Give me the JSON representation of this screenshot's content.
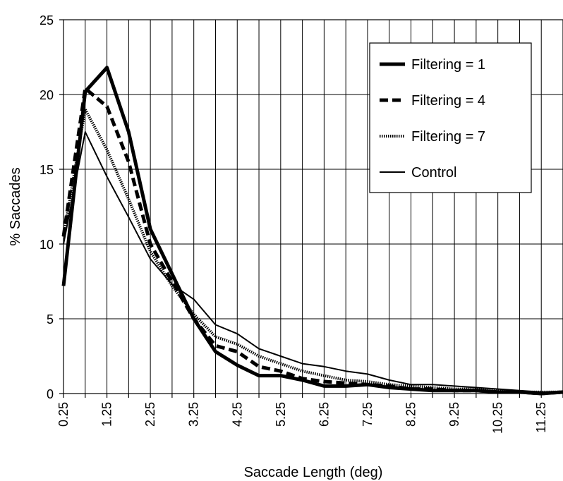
{
  "chart_data": {
    "type": "line",
    "xlabel": "Saccade Length (deg)",
    "ylabel": "% Saccades",
    "xlim": [
      0.25,
      11.75
    ],
    "ylim": [
      0,
      25
    ],
    "x_tick_labels": [
      "0.25",
      "1.25",
      "2.25",
      "3.25",
      "4.25",
      "5.25",
      "6.25",
      "7.25",
      "8.25",
      "9.25",
      "10.25",
      "11.25"
    ],
    "y_tick_labels": [
      "0",
      "5",
      "10",
      "15",
      "20",
      "25"
    ],
    "grid": true,
    "legend_position": "top-right",
    "x": [
      0.25,
      0.75,
      1.25,
      1.75,
      2.25,
      2.75,
      3.25,
      3.75,
      4.25,
      4.75,
      5.25,
      5.75,
      6.25,
      6.75,
      7.25,
      7.75,
      8.25,
      8.75,
      9.25,
      9.75,
      10.25,
      10.75,
      11.25,
      11.75
    ],
    "series": [
      {
        "name": "Filtering = 1",
        "style": "thick-solid",
        "values": [
          7.2,
          20.2,
          21.8,
          17.5,
          11.0,
          8.0,
          5.0,
          2.8,
          1.9,
          1.2,
          1.2,
          0.9,
          0.5,
          0.5,
          0.6,
          0.4,
          0.3,
          0.2,
          0.2,
          0.2,
          0.1,
          0.1,
          0.0,
          0.1
        ]
      },
      {
        "name": "Filtering = 4",
        "style": "dashed",
        "values": [
          10.5,
          20.4,
          19.2,
          15.5,
          10.0,
          7.5,
          5.0,
          3.2,
          2.8,
          1.8,
          1.5,
          1.0,
          0.8,
          0.7,
          0.6,
          0.5,
          0.3,
          0.3,
          0.2,
          0.2,
          0.1,
          0.1,
          0.0,
          0.1
        ]
      },
      {
        "name": "Filtering = 7",
        "style": "dotted",
        "values": [
          10.5,
          19.0,
          16.3,
          13.0,
          9.5,
          7.2,
          5.3,
          3.8,
          3.3,
          2.5,
          2.0,
          1.5,
          1.2,
          0.9,
          0.8,
          0.6,
          0.5,
          0.4,
          0.3,
          0.3,
          0.2,
          0.1,
          0.1,
          0.1
        ]
      },
      {
        "name": "Control",
        "style": "thin-solid",
        "values": [
          10.0,
          17.5,
          14.5,
          11.8,
          9.0,
          7.3,
          6.3,
          4.6,
          4.0,
          3.0,
          2.5,
          2.0,
          1.8,
          1.5,
          1.3,
          0.9,
          0.6,
          0.6,
          0.5,
          0.4,
          0.3,
          0.2,
          0.1,
          0.1
        ]
      }
    ]
  }
}
